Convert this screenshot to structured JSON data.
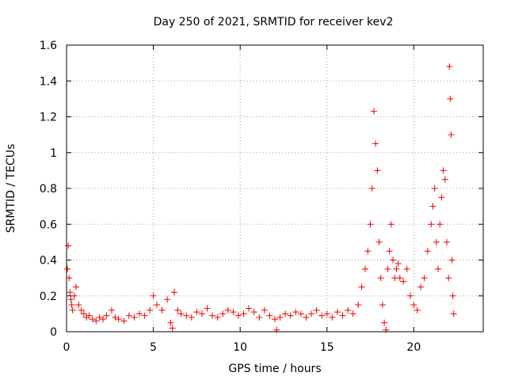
{
  "chart_data": {
    "type": "scatter",
    "title": "Day 250 of 2021, SRMTID for receiver kev2",
    "xlabel": "GPS time / hours",
    "ylabel": "SRMTID / TECUs",
    "xlim": [
      0,
      24
    ],
    "ylim": [
      0,
      1.6
    ],
    "xticks": [
      0,
      5,
      10,
      15,
      20
    ],
    "xtick_labels": [
      "0",
      "5",
      "10",
      "15",
      "20"
    ],
    "yticks": [
      0,
      0.2,
      0.4,
      0.6,
      0.8,
      1.0,
      1.2,
      1.4,
      1.6
    ],
    "ytick_labels": [
      "0",
      "0.2",
      "0.4",
      "0.6",
      "0.8",
      "1",
      "1.2",
      "1.4",
      "1.6"
    ],
    "grid": true,
    "marker": "+",
    "color": "#ee0000",
    "series": [
      {
        "name": "kev2",
        "x": [
          0.05,
          0.1,
          0.15,
          0.2,
          0.25,
          0.3,
          0.35,
          0.45,
          0.55,
          0.7,
          0.85,
          1.0,
          1.15,
          1.3,
          1.5,
          1.7,
          1.9,
          2.1,
          2.3,
          2.6,
          2.8,
          3.0,
          3.3,
          3.6,
          3.9,
          4.2,
          4.5,
          4.8,
          5.0,
          5.2,
          5.5,
          5.8,
          6.0,
          6.1,
          6.2,
          6.4,
          6.6,
          6.9,
          7.2,
          7.5,
          7.8,
          8.1,
          8.4,
          8.7,
          9.0,
          9.3,
          9.6,
          9.9,
          10.2,
          10.5,
          10.8,
          11.1,
          11.4,
          11.7,
          12.0,
          12.1,
          12.3,
          12.6,
          12.9,
          13.2,
          13.5,
          13.8,
          14.1,
          14.4,
          14.7,
          15.0,
          15.3,
          15.6,
          15.9,
          16.2,
          16.5,
          16.8,
          17.0,
          17.2,
          17.35,
          17.5,
          17.6,
          17.7,
          17.8,
          17.9,
          18.0,
          18.1,
          18.2,
          18.3,
          18.4,
          18.5,
          18.6,
          18.7,
          18.8,
          18.9,
          19.0,
          19.1,
          19.2,
          19.4,
          19.6,
          19.8,
          20.0,
          20.2,
          20.4,
          20.6,
          20.8,
          21.0,
          21.1,
          21.2,
          21.3,
          21.4,
          21.5,
          21.6,
          21.7,
          21.8,
          21.9,
          22.0,
          22.05,
          22.1,
          22.15,
          22.2,
          22.25,
          22.3
        ],
        "y": [
          0.35,
          0.48,
          0.3,
          0.22,
          0.18,
          0.15,
          0.12,
          0.2,
          0.25,
          0.15,
          0.12,
          0.1,
          0.08,
          0.09,
          0.07,
          0.06,
          0.08,
          0.07,
          0.09,
          0.12,
          0.08,
          0.07,
          0.06,
          0.09,
          0.08,
          0.1,
          0.09,
          0.12,
          0.2,
          0.15,
          0.12,
          0.18,
          0.05,
          0.02,
          0.22,
          0.12,
          0.1,
          0.09,
          0.08,
          0.11,
          0.1,
          0.13,
          0.09,
          0.08,
          0.1,
          0.12,
          0.11,
          0.09,
          0.1,
          0.13,
          0.11,
          0.08,
          0.12,
          0.09,
          0.07,
          0.01,
          0.08,
          0.1,
          0.09,
          0.11,
          0.1,
          0.08,
          0.1,
          0.12,
          0.09,
          0.1,
          0.08,
          0.11,
          0.09,
          0.12,
          0.1,
          0.15,
          0.25,
          0.35,
          0.45,
          0.6,
          0.8,
          1.23,
          1.05,
          0.9,
          0.5,
          0.3,
          0.15,
          0.05,
          0.01,
          0.35,
          0.45,
          0.6,
          0.4,
          0.3,
          0.35,
          0.38,
          0.3,
          0.28,
          0.35,
          0.2,
          0.15,
          0.12,
          0.25,
          0.3,
          0.45,
          0.6,
          0.7,
          0.8,
          0.5,
          0.35,
          0.6,
          0.75,
          0.9,
          0.85,
          0.5,
          0.3,
          1.48,
          1.3,
          1.1,
          0.4,
          0.2,
          0.1
        ]
      }
    ]
  }
}
